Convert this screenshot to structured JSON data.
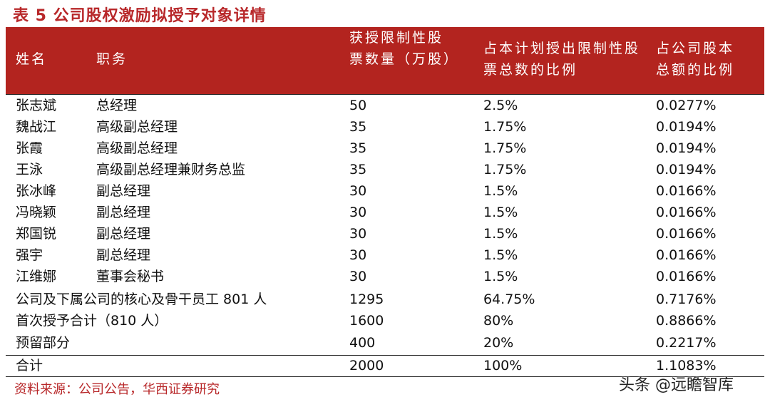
{
  "title": "表 5 公司股权激励拟授予对象详情",
  "table": {
    "header": [
      "姓名",
      "职务",
      "获授限制性股票数量（万股）",
      "占本计划授出限制性股票总数的比例",
      "占公司股本总额的比例"
    ],
    "rows": [
      [
        "张志斌",
        "总经理",
        "50",
        "2.5%",
        "0.0277%"
      ],
      [
        "魏战江",
        "高级副总经理",
        "35",
        "1.75%",
        "0.0194%"
      ],
      [
        "张霞",
        "高级副总经理",
        "35",
        "1.75%",
        "0.0194%"
      ],
      [
        "王泳",
        "高级副总经理兼财务总监",
        "35",
        "1.75%",
        "0.0194%"
      ],
      [
        "张冰峰",
        "副总经理",
        "30",
        "1.5%",
        "0.0166%"
      ],
      [
        "冯晓颖",
        "副总经理",
        "30",
        "1.5%",
        "0.0166%"
      ],
      [
        "郑国锐",
        "副总经理",
        "30",
        "1.5%",
        "0.0166%"
      ],
      [
        "强宇",
        "副总经理",
        "30",
        "1.5%",
        "0.0166%"
      ],
      [
        "江维娜",
        "董事会秘书",
        "30",
        "1.5%",
        "0.0166%"
      ],
      [
        "公司及下属公司的核心及骨干员工 801 人",
        "1295",
        "64.75%",
        "0.7176%"
      ],
      [
        "首次授予合计（810 人）",
        "1600",
        "80%",
        "0.8866%"
      ],
      [
        "预留部分",
        "400",
        "20%",
        "0.2217%"
      ],
      [
        "合计",
        "2000",
        "100%",
        "1.1083%"
      ]
    ]
  },
  "source": "资料来源：公司公告，华西证券研究",
  "watermark": "头条 @远瞻智库"
}
